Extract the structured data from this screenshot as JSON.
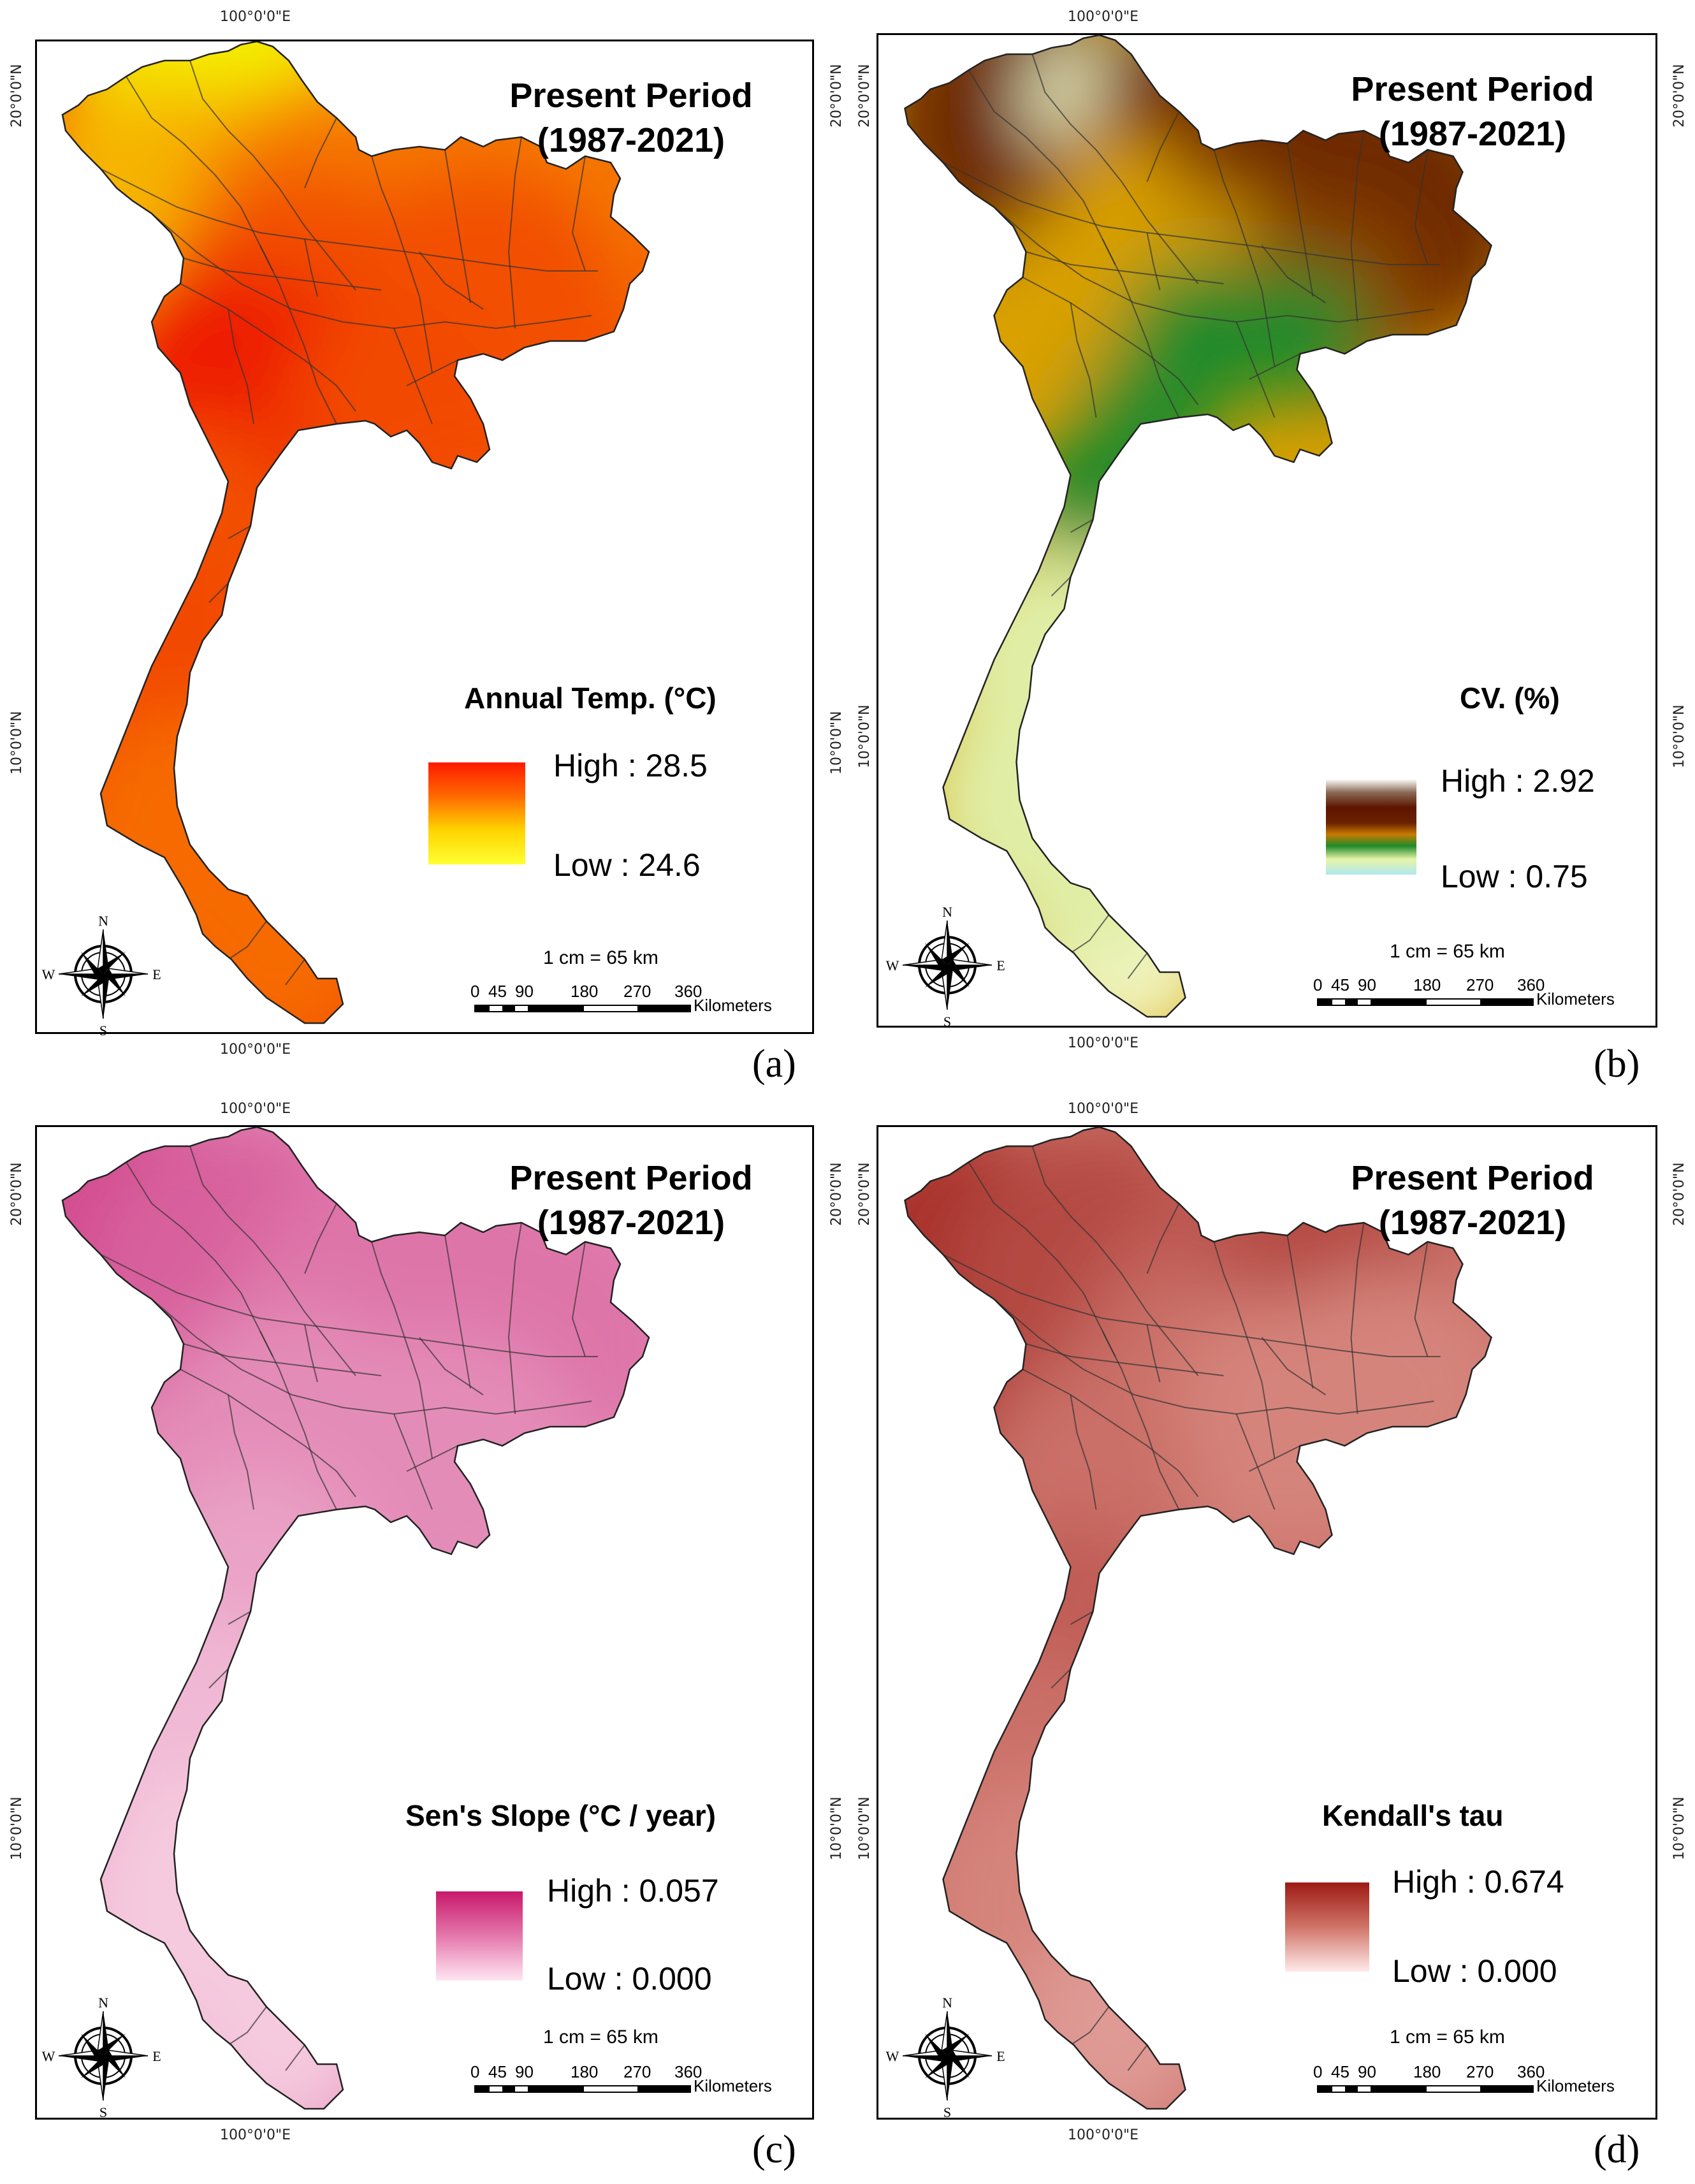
{
  "panels": [
    {
      "id": "a",
      "title_line1": "Present Period",
      "title_line2": "(1987-2021)",
      "legend_title": "Annual Temp. (°C)",
      "high_label": "High : 28.5",
      "low_label": "Low : 24.6",
      "ramp_colors": [
        "#ff1a00",
        "#ff6a00",
        "#ffd400",
        "#ffff33"
      ],
      "map_palette": [
        "#f4f000",
        "#f6b400",
        "#f57a00",
        "#f24f00",
        "#ee1c00",
        "#f24a00",
        "#f66a00"
      ],
      "scale_text": "1 cm = 65 km",
      "scale_ticks": [
        "0",
        "45",
        "90",
        "180",
        "270",
        "360"
      ],
      "scale_unit": "Kilometers",
      "lon_label": "100°0'0\"E",
      "lat_top": "20°0'0\"N",
      "lat_mid": "10°0'0\"N",
      "panel_label": "(a)",
      "compass": {
        "n": "N",
        "s": "S",
        "e": "E",
        "w": "W"
      }
    },
    {
      "id": "b",
      "title_line1": "Present Period",
      "title_line2": "(1987-2021)",
      "legend_title": "CV. (%)",
      "high_label": "High : 2.92",
      "low_label": "Low : 0.75",
      "ramp_colors": [
        "#ffffff",
        "#6b2200",
        "#5c1400",
        "#c87a00",
        "#2e9a2e",
        "#d9f0a0",
        "#aee8f0"
      ],
      "map_palette": [
        "#5c1a00",
        "#6e2a00",
        "#8a3f00",
        "#d9a000",
        "#1f8a2a",
        "#e0eea6",
        "#f2f6c4"
      ],
      "scale_text": "1 cm = 65 km",
      "scale_ticks": [
        "0",
        "45",
        "90",
        "180",
        "270",
        "360"
      ],
      "scale_unit": "Kilometers",
      "lon_label": "100°0'0\"E",
      "lat_top": "20°0'0\"N",
      "lat_mid": "10°0'0\"N",
      "panel_label": "(b)",
      "compass": {
        "n": "N",
        "s": "S",
        "e": "E",
        "w": "W"
      }
    },
    {
      "id": "c",
      "title_line1": "Present Period",
      "title_line2": "(1987-2021)",
      "legend_title": "Sen's Slope (°C / year)",
      "high_label": "High : 0.057",
      "low_label": "Low : 0.000",
      "ramp_colors": [
        "#c8186a",
        "#ffe6f2"
      ],
      "map_palette": [
        "#d24a8f",
        "#d8609d",
        "#de74a9",
        "#e48cb8",
        "#eaa2c6",
        "#f0b8d4",
        "#f5c9de"
      ],
      "scale_text": "1 cm = 65 km",
      "scale_ticks": [
        "0",
        "45",
        "90",
        "180",
        "270",
        "360"
      ],
      "scale_unit": "Kilometers",
      "lon_label": "100°0'0\"E",
      "lat_top": "20°0'0\"N",
      "lat_mid": "10°0'0\"N",
      "panel_label": "(c)",
      "compass": {
        "n": "N",
        "s": "S",
        "e": "E",
        "w": "W"
      }
    },
    {
      "id": "d",
      "title_line1": "Present Period",
      "title_line2": "(1987-2021)",
      "legend_title": "Kendall's tau",
      "high_label": "High : 0.674",
      "low_label": "Low : 0.000",
      "ramp_colors": [
        "#9c1a14",
        "#ffeaea"
      ],
      "map_palette": [
        "#a8302a",
        "#b44a42",
        "#bf5c54",
        "#ca7068",
        "#d5847c",
        "#df9a94",
        "#eab4ae"
      ],
      "scale_text": "1 cm = 65 km",
      "scale_ticks": [
        "0",
        "45",
        "90",
        "180",
        "270",
        "360"
      ],
      "scale_unit": "Kilometers",
      "lon_label": "100°0'0\"E",
      "lat_top": "20°0'0\"N",
      "lat_mid": "10°0'0\"N",
      "panel_label": "(d)",
      "compass": {
        "n": "N",
        "s": "S",
        "e": "E",
        "w": "W"
      }
    }
  ]
}
